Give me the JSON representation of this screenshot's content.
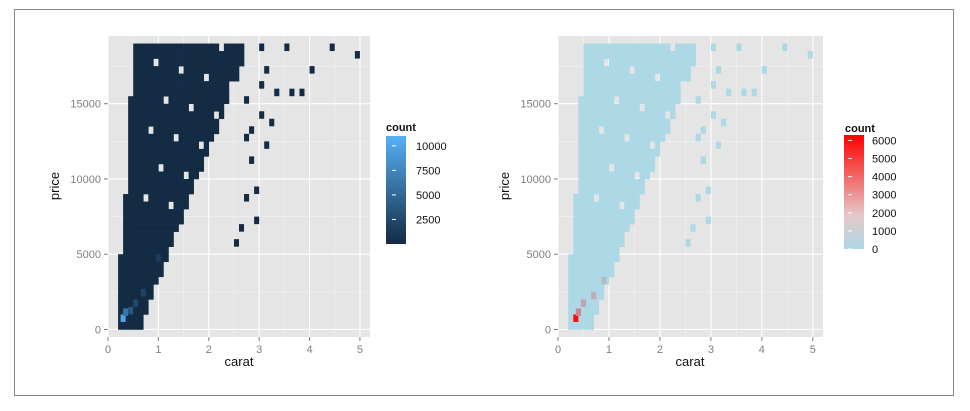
{
  "chart_data": [
    {
      "type": "heatmap",
      "xlabel": "carat",
      "ylabel": "price",
      "xlim": [
        0,
        5.2
      ],
      "ylim": [
        -500,
        19500
      ],
      "x_ticks": [
        "0",
        "1",
        "2",
        "3",
        "4",
        "5"
      ],
      "x_tick_values": [
        0,
        1,
        2,
        3,
        4,
        5
      ],
      "y_ticks": [
        "0",
        "5000",
        "10000",
        "15000"
      ],
      "y_tick_values": [
        0,
        5000,
        10000,
        15000
      ],
      "legend": {
        "title": "count",
        "labels": [
          "10000",
          "7500",
          "5000",
          "2500"
        ],
        "label_values": [
          10000,
          7500,
          5000,
          2500
        ],
        "range": [
          0,
          11000
        ],
        "color_low": "#132b43",
        "color_high": "#56b1f7",
        "placement": "right"
      },
      "bin_color": "#132b43",
      "highlight_bins": [
        {
          "carat": 0.3,
          "price": 500,
          "count": 10000
        },
        {
          "carat": 0.35,
          "price": 900,
          "count": 6000
        },
        {
          "carat": 0.45,
          "price": 1000,
          "count": 3500
        },
        {
          "carat": 0.55,
          "price": 1500,
          "count": 2500
        },
        {
          "carat": 0.7,
          "price": 2200,
          "count": 2000
        },
        {
          "carat": 1.0,
          "price": 4500,
          "count": 1500
        }
      ],
      "grid": true
    },
    {
      "type": "heatmap",
      "xlabel": "carat",
      "ylabel": "price",
      "xlim": [
        0,
        5.2
      ],
      "ylim": [
        -500,
        19500
      ],
      "x_ticks": [
        "0",
        "1",
        "2",
        "3",
        "4",
        "5"
      ],
      "x_tick_values": [
        0,
        1,
        2,
        3,
        4,
        5
      ],
      "y_ticks": [
        "0",
        "5000",
        "10000",
        "15000"
      ],
      "y_tick_values": [
        0,
        5000,
        10000,
        15000
      ],
      "legend": {
        "title": "count",
        "labels": [
          "6000",
          "5000",
          "4000",
          "3000",
          "2000",
          "1000",
          "0"
        ],
        "label_values": [
          6000,
          5000,
          4000,
          3000,
          2000,
          1000,
          0
        ],
        "range": [
          0,
          6300
        ],
        "color_low": "#add8e6",
        "color_high": "#ff0000",
        "placement": "right"
      },
      "bin_color": "#add8e6",
      "highlight_bins": [
        {
          "carat": 0.35,
          "price": 500,
          "count": 6000
        },
        {
          "carat": 0.4,
          "price": 900,
          "count": 2500
        },
        {
          "carat": 0.5,
          "price": 1500,
          "count": 1500
        },
        {
          "carat": 0.7,
          "price": 2000,
          "count": 1200
        },
        {
          "carat": 0.9,
          "price": 3000,
          "count": 900
        }
      ],
      "grid": true
    }
  ]
}
